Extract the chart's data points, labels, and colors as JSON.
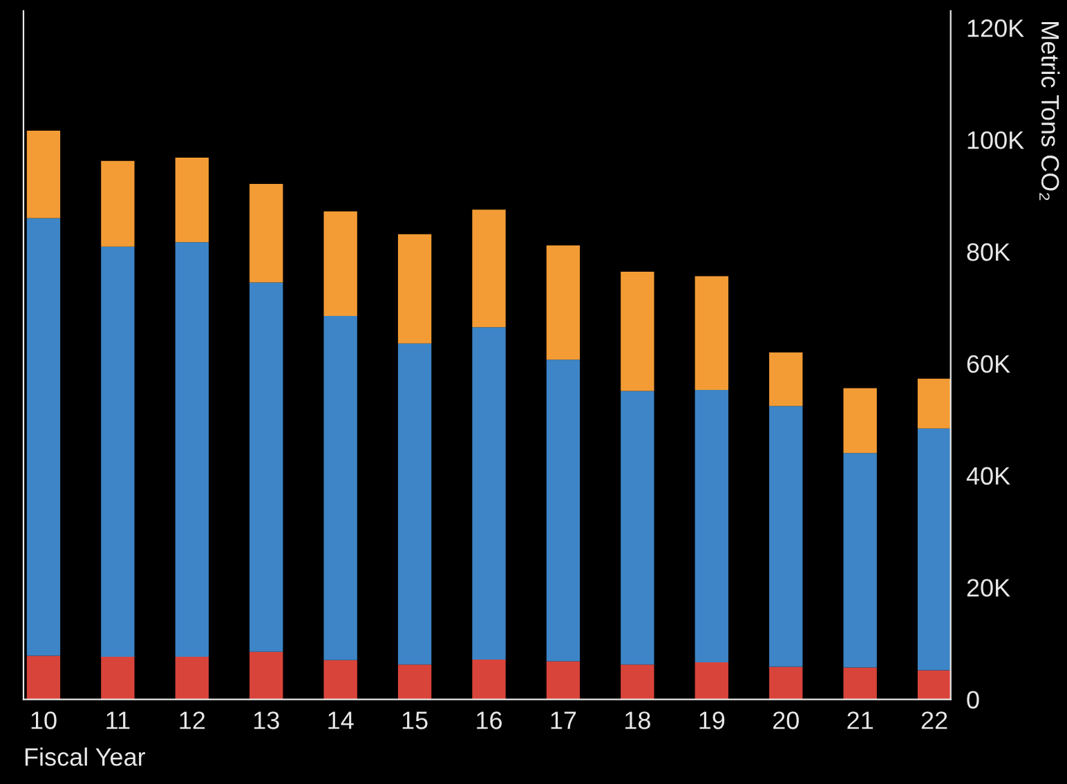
{
  "chart_data": {
    "type": "bar",
    "stacked": true,
    "xlabel": "Fiscal Year",
    "ylabel": "Metric Tons CO₂",
    "categories": [
      "10",
      "11",
      "12",
      "13",
      "14",
      "15",
      "16",
      "17",
      "18",
      "19",
      "20",
      "21",
      "22"
    ],
    "series": [
      {
        "color": "#d9443a",
        "values": [
          7800,
          7600,
          7600,
          8500,
          7000,
          6200,
          7100,
          6800,
          6200,
          6600,
          5800,
          5700,
          5200
        ]
      },
      {
        "color": "#3d85c6",
        "values": [
          78200,
          73300,
          74100,
          66000,
          61500,
          57400,
          59400,
          53900,
          48900,
          48700,
          46600,
          38300,
          43200
        ]
      },
      {
        "color": "#f39c35",
        "values": [
          15600,
          15300,
          15100,
          17600,
          18700,
          19500,
          21000,
          20400,
          21300,
          20300,
          9600,
          11600,
          8900
        ]
      }
    ],
    "ylim": [
      0,
      123000
    ],
    "yticks": [
      0,
      {
        "value": 20000,
        "label": "20K"
      },
      {
        "value": 40000,
        "label": "40K"
      },
      {
        "value": 60000,
        "label": "60K"
      },
      {
        "value": 80000,
        "label": "80K"
      },
      {
        "value": 100000,
        "label": "100K"
      },
      {
        "value": 120000,
        "label": "120K"
      }
    ],
    "grid": false,
    "legend": false
  }
}
